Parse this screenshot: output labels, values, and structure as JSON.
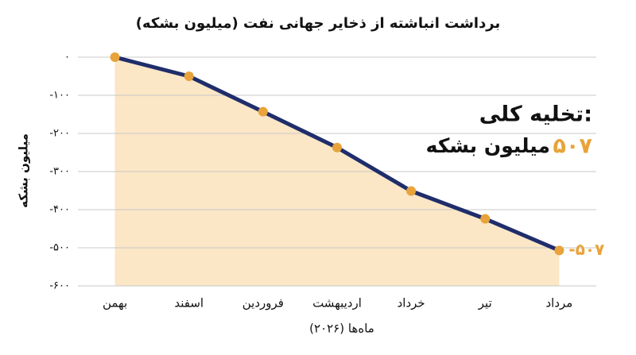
{
  "chart_data": {
    "type": "area-line",
    "title": "برداشت انباشته از ذخایر جهانی نفت (میلیون بشکه)",
    "y_label": "میلیون بشکه",
    "x_label": "ماه‌ها (۲۰۲۶)",
    "categories": [
      "بهمن",
      "اسفند",
      "فروردین",
      "اردیبهشت",
      "خرداد",
      "تیر",
      "مرداد"
    ],
    "values": [
      0,
      -50,
      -143,
      -237,
      -351,
      -424,
      -507
    ],
    "value_labels": [
      null,
      null,
      null,
      null,
      null,
      null,
      "-۵۰۷"
    ],
    "line_color": "#1f2d6b",
    "marker_color": "#e8a33a",
    "fill_color": "#fbe6c6",
    "ylim": [
      -600,
      0
    ],
    "yticks": [
      {
        "value": 0,
        "label": "۰"
      },
      {
        "value": -100,
        "label": "-۱۰۰"
      },
      {
        "value": -200,
        "label": "-۲۰۰"
      },
      {
        "value": -300,
        "label": "-۳۰۰"
      },
      {
        "value": -400,
        "label": "-۴۰۰"
      },
      {
        "value": -500,
        "label": "-۵۰۰"
      },
      {
        "value": -600,
        "label": "-۶۰۰"
      }
    ],
    "grid": true,
    "annotation": {
      "title": "تخلیه کلی:",
      "value": "۵۰۷",
      "unit": "میلیون بشکه"
    }
  }
}
